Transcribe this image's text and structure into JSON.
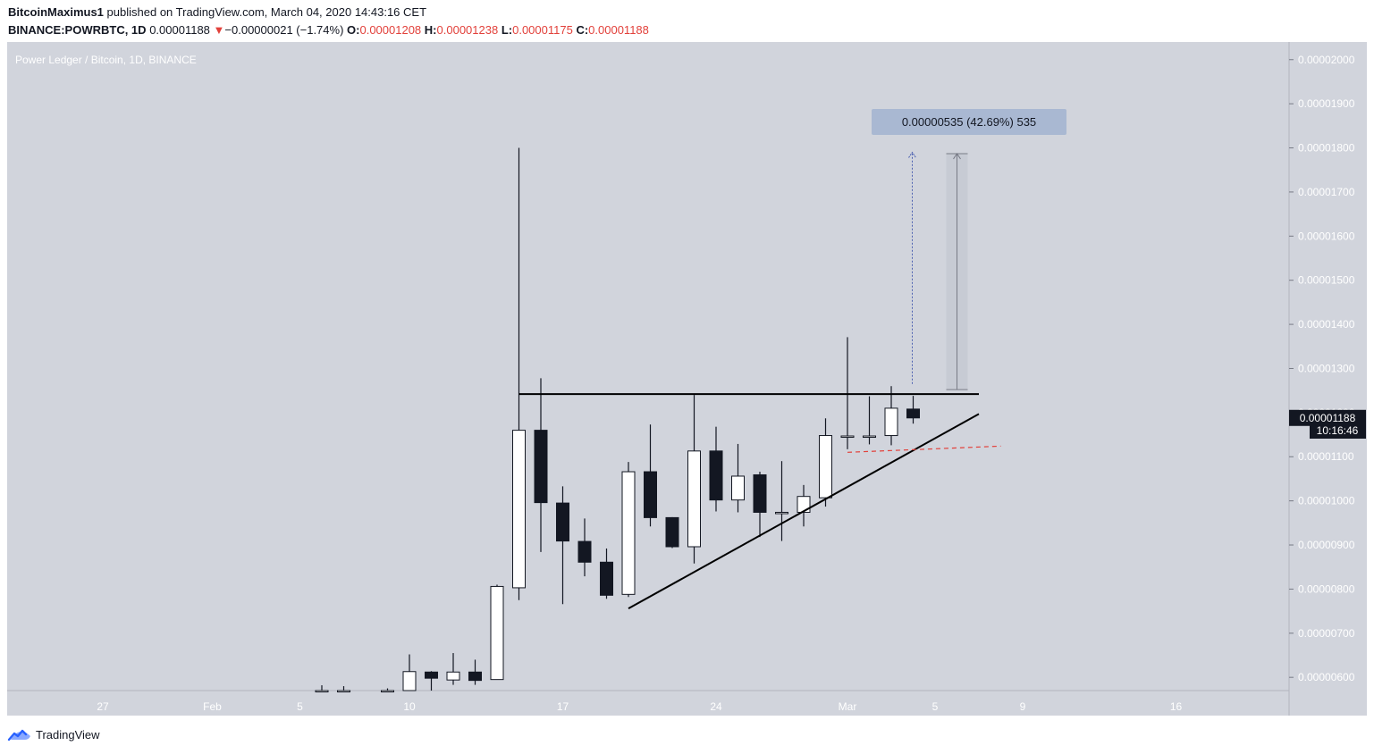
{
  "header": {
    "author": "BitcoinMaximus1",
    "published_text": "published on TradingView.com, March 04, 2020 14:43:16 CET",
    "symbol": "BINANCE:POWRBTC, 1D",
    "last_price": "0.00001188",
    "change_arrow": "▼",
    "change": "−0.00000021 (−1.74%)",
    "o_label": "O:",
    "o_value": "0.00001208",
    "h_label": "H:",
    "h_value": "0.00001238",
    "l_label": "L:",
    "l_value": "0.00001175",
    "c_label": "C:",
    "c_value": "0.00001188"
  },
  "chart_title": "Power Ledger / Bitcoin, 1D, BINANCE",
  "measure_label": "0.00000535 (42.69%) 535",
  "price_tag": "0.00001188",
  "countdown": "10:16:46",
  "footer_brand": "TradingView",
  "colors": {
    "background": "#d1d4dc",
    "up_body": "#ffffff",
    "down_body": "#131722",
    "wick": "#131722",
    "support_dashed": "#e2413b",
    "measure_bg": "#a9b8d2",
    "header_red": "#e2413b",
    "brand_blue": "#2962ff"
  },
  "chart_data": {
    "type": "candlestick",
    "y_axis": {
      "range": [
        5.7e-06,
        2.04e-05
      ],
      "ticks": [
        "0.00000600",
        "0.00000700",
        "0.00000800",
        "0.00000900",
        "0.00001000",
        "0.00001100",
        "0.00001200",
        "0.00001300",
        "0.00001400",
        "0.00001500",
        "0.00001600",
        "0.00001700",
        "0.00001800",
        "0.00001900",
        "0.00002000"
      ]
    },
    "x_axis": {
      "ticks": [
        "27",
        "Feb",
        "5",
        "10",
        "17",
        "24",
        "Mar",
        "5",
        "9",
        "16"
      ]
    },
    "candles": [
      {
        "date": "2020-02-06",
        "o": 5.7e-06,
        "h": 5.82e-06,
        "l": 5.7e-06,
        "c": 5.7e-06
      },
      {
        "date": "2020-02-07",
        "o": 5.7e-06,
        "h": 5.8e-06,
        "l": 5.7e-06,
        "c": 5.7e-06
      },
      {
        "date": "2020-02-09",
        "o": 5.7e-06,
        "h": 5.75e-06,
        "l": 5.7e-06,
        "c": 5.7e-06
      },
      {
        "date": "2020-02-10",
        "o": 5.7e-06,
        "h": 6.52e-06,
        "l": 5.7e-06,
        "c": 6.13e-06
      },
      {
        "date": "2020-02-11",
        "o": 6.12e-06,
        "h": 6.14e-06,
        "l": 5.7e-06,
        "c": 5.98e-06
      },
      {
        "date": "2020-02-12",
        "o": 5.94e-06,
        "h": 6.55e-06,
        "l": 5.83e-06,
        "c": 6.12e-06
      },
      {
        "date": "2020-02-13",
        "o": 6.12e-06,
        "h": 6.4e-06,
        "l": 5.83e-06,
        "c": 5.93e-06
      },
      {
        "date": "2020-02-14",
        "o": 5.95e-06,
        "h": 8.1e-06,
        "l": 5.95e-06,
        "c": 8.06e-06
      },
      {
        "date": "2020-02-15",
        "o": 8.03e-06,
        "h": 1.8e-05,
        "l": 7.75e-06,
        "c": 1.16e-05
      },
      {
        "date": "2020-02-16",
        "o": 1.16e-05,
        "h": 1.278e-05,
        "l": 8.84e-06,
        "c": 9.96e-06
      },
      {
        "date": "2020-02-17",
        "o": 9.95e-06,
        "h": 1.033e-05,
        "l": 7.66e-06,
        "c": 9.09e-06
      },
      {
        "date": "2020-02-18",
        "o": 9.08e-06,
        "h": 9.6e-06,
        "l": 8.29e-06,
        "c": 8.61e-06
      },
      {
        "date": "2020-02-19",
        "o": 8.61e-06,
        "h": 8.92e-06,
        "l": 7.78e-06,
        "c": 7.86e-06
      },
      {
        "date": "2020-02-20",
        "o": 7.88e-06,
        "h": 1.088e-05,
        "l": 7.82e-06,
        "c": 1.066e-05
      },
      {
        "date": "2020-02-21",
        "o": 1.066e-05,
        "h": 1.173e-05,
        "l": 9.42e-06,
        "c": 9.62e-06
      },
      {
        "date": "2020-02-22",
        "o": 9.62e-06,
        "h": 9.63e-06,
        "l": 8.93e-06,
        "c": 8.96e-06
      },
      {
        "date": "2020-02-23",
        "o": 8.96e-06,
        "h": 1.24e-05,
        "l": 8.58e-06,
        "c": 1.113e-05
      },
      {
        "date": "2020-02-24",
        "o": 1.113e-05,
        "h": 1.168e-05,
        "l": 9.76e-06,
        "c": 1.002e-05
      },
      {
        "date": "2020-02-25",
        "o": 1.002e-05,
        "h": 1.129e-05,
        "l": 9.74e-06,
        "c": 1.056e-05
      },
      {
        "date": "2020-02-26",
        "o": 1.059e-05,
        "h": 1.066e-05,
        "l": 9.18e-06,
        "c": 9.74e-06
      },
      {
        "date": "2020-02-27",
        "o": 9.74e-06,
        "h": 1.09e-05,
        "l": 9.09e-06,
        "c": 9.74e-06
      },
      {
        "date": "2020-02-28",
        "o": 9.74e-06,
        "h": 1.036e-05,
        "l": 9.42e-06,
        "c": 1.01e-05
      },
      {
        "date": "2020-02-29",
        "o": 1.007e-05,
        "h": 1.187e-05,
        "l": 9.87e-06,
        "c": 1.148e-05
      },
      {
        "date": "2020-03-01",
        "o": 1.147e-05,
        "h": 1.371e-05,
        "l": 1.117e-05,
        "c": 1.147e-05
      },
      {
        "date": "2020-03-02",
        "o": 1.147e-05,
        "h": 1.237e-05,
        "l": 1.128e-05,
        "c": 1.147e-05
      },
      {
        "date": "2020-03-03",
        "o": 1.148e-05,
        "h": 1.26e-05,
        "l": 1.126e-05,
        "c": 1.21e-05
      },
      {
        "date": "2020-03-04",
        "o": 1.208e-05,
        "h": 1.238e-05,
        "l": 1.175e-05,
        "c": 1.188e-05
      }
    ],
    "drawings": {
      "resistance": {
        "from": {
          "date": "2020-02-15",
          "price": 1.242e-05
        },
        "to": {
          "date": "2020-03-07",
          "price": 1.242e-05
        }
      },
      "rising_support": {
        "from": {
          "date": "2020-02-20",
          "price": 7.56e-06
        },
        "to": {
          "date": "2020-03-07",
          "price": 1.197e-05
        }
      },
      "dashed_support": {
        "from": {
          "date": "2020-03-01",
          "price": 1.11e-05
        },
        "to": {
          "date": "2020-03-08",
          "price": 1.124e-05
        }
      },
      "measure": {
        "date": "2020-03-06",
        "from_price": 1.252e-05,
        "to_price": 1.787e-05
      },
      "projection_arrow": {
        "date": "2020-03-04",
        "from_price": 1.265e-05,
        "to_price": 1.79e-05
      }
    }
  }
}
